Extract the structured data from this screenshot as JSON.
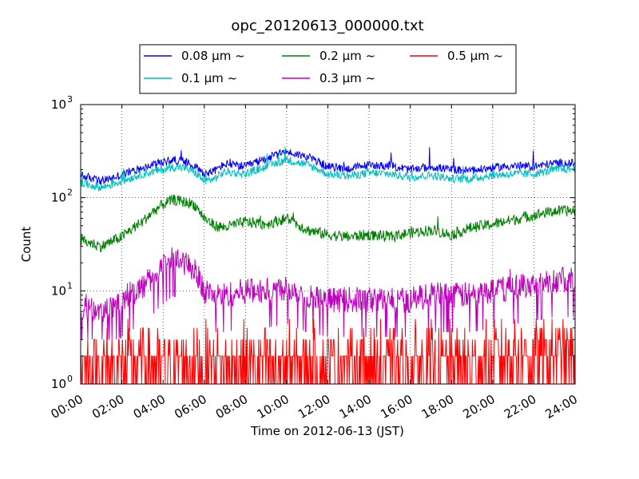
{
  "chart_data": {
    "type": "line",
    "title": "opc_20120613_000000.txt",
    "xlabel": "Time on 2012-06-13 (JST)",
    "ylabel": "Count",
    "x_unit": "hours",
    "xlim": [
      0,
      24
    ],
    "ylim": [
      1,
      1000
    ],
    "yscale": "log",
    "grid": true,
    "legend_position": "top-center",
    "x_tick_labels": [
      "00:00",
      "02:00",
      "04:00",
      "06:00",
      "08:00",
      "10:00",
      "12:00",
      "14:00",
      "16:00",
      "18:00",
      "20:00",
      "22:00",
      "24:00"
    ],
    "x_ticks": [
      0,
      2,
      4,
      6,
      8,
      10,
      12,
      14,
      16,
      18,
      20,
      22,
      24
    ],
    "y_ticks": [
      {
        "value": 1,
        "base": "10",
        "exp": "0"
      },
      {
        "value": 10,
        "base": "10",
        "exp": "1"
      },
      {
        "value": 100,
        "base": "10",
        "exp": "2"
      },
      {
        "value": 1000,
        "base": "10",
        "exp": "3"
      }
    ],
    "series": [
      {
        "name": "0.08 μm ~",
        "color": "#0000ff",
        "x": [
          0,
          1,
          2,
          3,
          4,
          4.5,
          5,
          5.5,
          6,
          6.5,
          7,
          8,
          9,
          10,
          11,
          12,
          13,
          14,
          15,
          16,
          17,
          18,
          19,
          20,
          21,
          22,
          23,
          24
        ],
        "values": [
          175,
          150,
          175,
          210,
          240,
          255,
          245,
          225,
          180,
          195,
          230,
          215,
          265,
          310,
          275,
          215,
          205,
          225,
          220,
          200,
          215,
          200,
          195,
          210,
          220,
          215,
          235,
          235
        ]
      },
      {
        "name": "0.1 μm ~",
        "color": "#00bfbf",
        "x": [
          0,
          1,
          2,
          3,
          4,
          4.5,
          5,
          5.5,
          6,
          6.5,
          7,
          8,
          9,
          10,
          11,
          12,
          13,
          14,
          15,
          16,
          17,
          18,
          19,
          20,
          21,
          22,
          23,
          24
        ],
        "values": [
          145,
          128,
          150,
          180,
          200,
          215,
          210,
          190,
          150,
          160,
          190,
          180,
          215,
          255,
          225,
          180,
          170,
          185,
          180,
          165,
          175,
          160,
          160,
          175,
          180,
          180,
          200,
          205
        ]
      },
      {
        "name": "0.2 μm ~",
        "color": "#008000",
        "x": [
          0,
          1,
          2,
          3,
          3.5,
          4,
          4.5,
          5,
          5.5,
          6,
          6.5,
          7,
          8,
          9,
          10,
          11,
          12,
          13,
          14,
          15,
          16,
          17,
          18,
          19,
          20,
          21,
          22,
          23,
          24
        ],
        "values": [
          35,
          30,
          38,
          55,
          70,
          85,
          95,
          90,
          85,
          60,
          50,
          48,
          55,
          52,
          60,
          45,
          40,
          38,
          40,
          38,
          42,
          45,
          40,
          48,
          52,
          58,
          65,
          72,
          72
        ]
      },
      {
        "name": "0.3 μm ~",
        "color": "#bf00bf",
        "x": [
          0,
          1,
          2,
          3,
          3.5,
          4,
          4.5,
          5,
          5.5,
          6,
          6.5,
          7,
          8,
          9,
          10,
          11,
          12,
          13,
          14,
          15,
          16,
          17,
          18,
          19,
          20,
          21,
          22,
          23,
          24
        ],
        "values": [
          7,
          6,
          8,
          11,
          14,
          18,
          22,
          20,
          17,
          10,
          9,
          9,
          10,
          10,
          11,
          9,
          8,
          8,
          8,
          8,
          8,
          9,
          9,
          9,
          10,
          11,
          12,
          13,
          13
        ]
      },
      {
        "name": "0.5 μm ~",
        "color": "#ff0000",
        "x": [
          0,
          2,
          4,
          6,
          8,
          10,
          12,
          14,
          16,
          18,
          20,
          22,
          24
        ],
        "values": [
          1.5,
          1.5,
          1.8,
          1.8,
          1.6,
          1.6,
          1.6,
          1.6,
          1.7,
          1.8,
          1.8,
          2,
          2
        ]
      }
    ]
  }
}
